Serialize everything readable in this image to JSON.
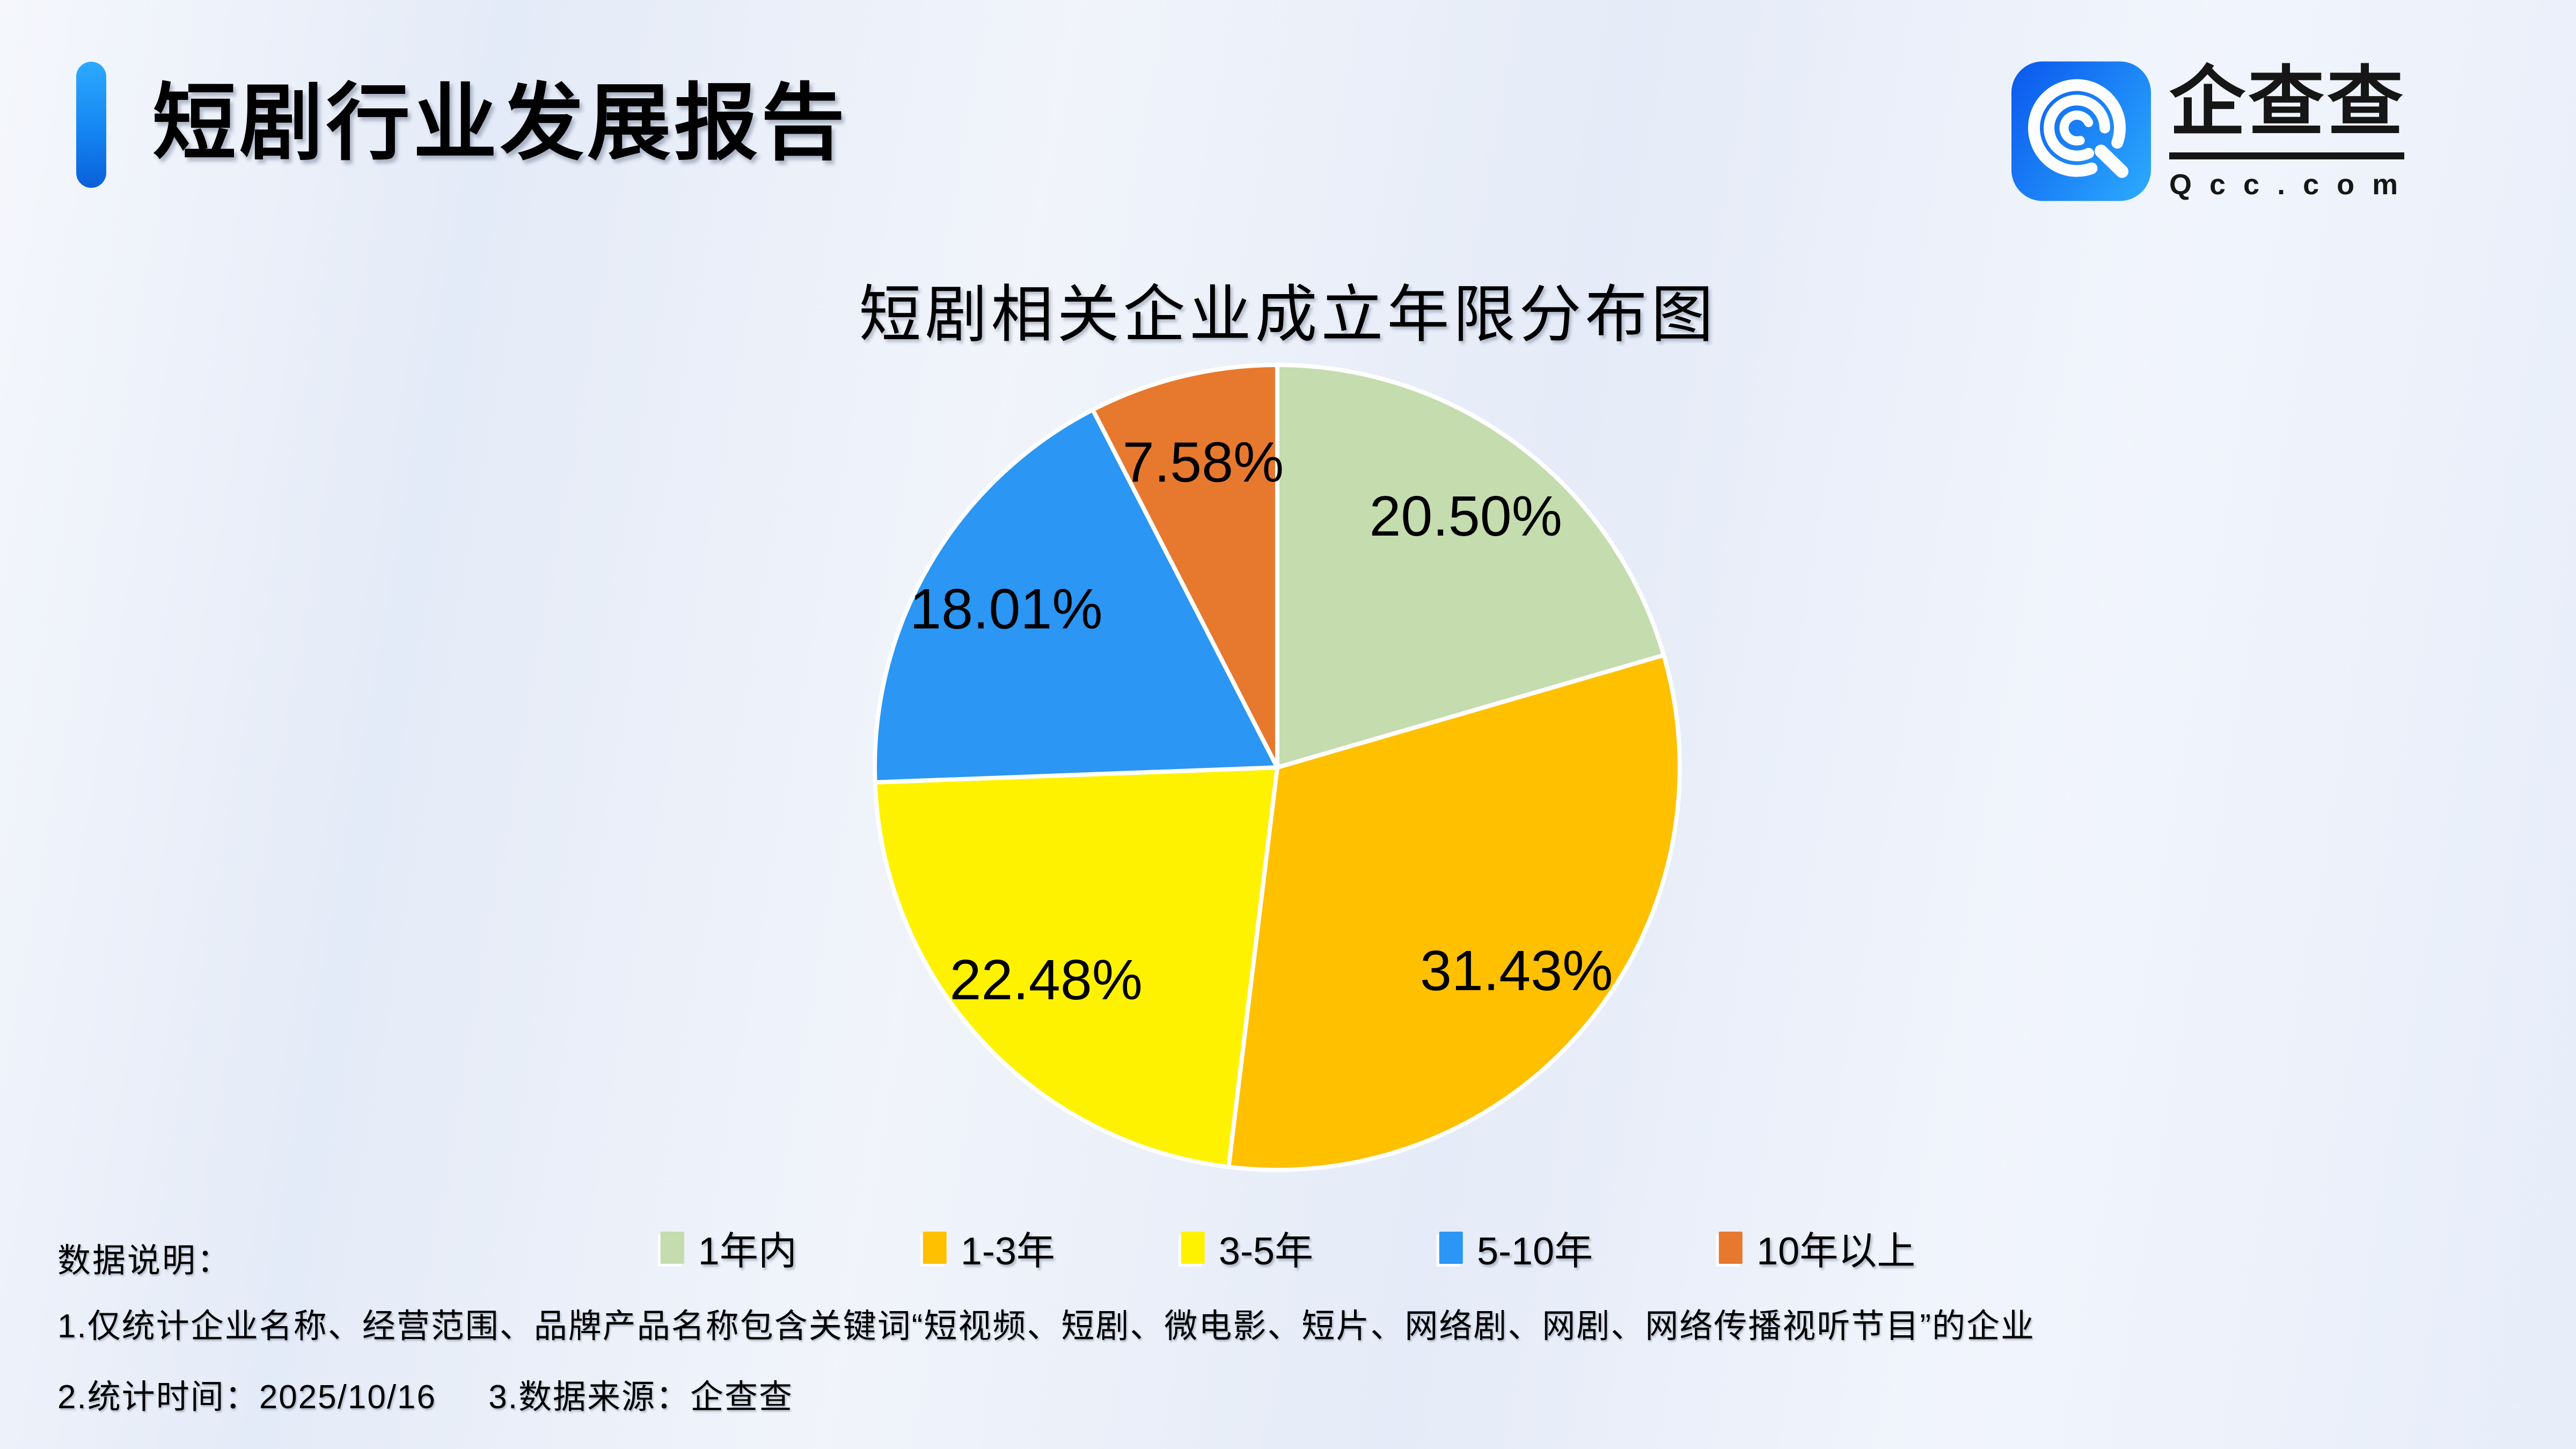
{
  "page": {
    "background_color": "#e9eef8"
  },
  "header": {
    "title": "短剧行业发展报告",
    "accent_bar_color_top": "#2caaff",
    "accent_bar_color_bottom": "#0a60da"
  },
  "logo": {
    "name": "企查查",
    "domain": "Qcc.com",
    "icon": "qcc-spiral-q-icon",
    "icon_gradient": [
      "#0c5cee",
      "#2aa7fe"
    ],
    "text_color": "#161616"
  },
  "chart_data": {
    "type": "pie",
    "title": "短剧相关企业成立年限分布图",
    "unit": "%",
    "start_angle_deg": 0,
    "direction": "clockwise",
    "legend_position": "bottom",
    "slice_border_color": "#ffffff",
    "label_color": "#000000",
    "slices": [
      {
        "label": "1年内",
        "value": 20.5,
        "value_label": "20.50%",
        "color": "#c4dcae"
      },
      {
        "label": "1-3年",
        "value": 31.43,
        "value_label": "31.43%",
        "color": "#ffc000"
      },
      {
        "label": "3-5年",
        "value": 22.48,
        "value_label": "22.48%",
        "color": "#fff200"
      },
      {
        "label": "5-10年",
        "value": 18.01,
        "value_label": "18.01%",
        "color": "#2b96f3"
      },
      {
        "label": "10年以上",
        "value": 7.58,
        "value_label": "7.58%",
        "color": "#e7792f"
      }
    ]
  },
  "footer": {
    "notes_title": "数据说明：",
    "note1": "1.仅统计企业名称、经营范围、品牌产品名称包含关键词“短视频、短剧、微电影、短片、网络剧、网剧、网络传播视听节目”的企业",
    "note2_parts": [
      "2.统计时间：2025/10/16",
      "3.数据来源：企查查"
    ]
  }
}
